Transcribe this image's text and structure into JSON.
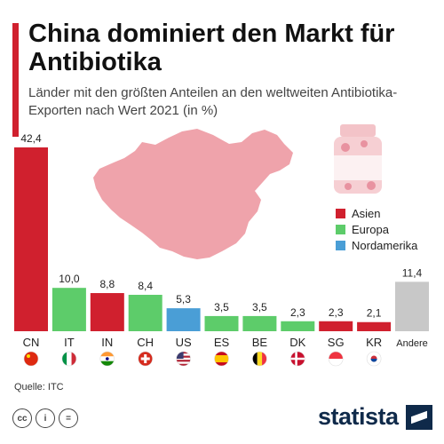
{
  "header": {
    "title": "China dominiert den Markt für Antibiotika",
    "subtitle": "Länder mit den größten Anteilen an den weltweiten Antibiotika-Exporten nach Wert 2021 (in %)"
  },
  "colors": {
    "accent": "#d0202e",
    "asien": "#d0202e",
    "europa": "#5dcc6a",
    "nordamerika": "#4a9ed6",
    "andere": "#c8c8c8",
    "map": "#efa3ab"
  },
  "chart_data": {
    "type": "bar",
    "title": "China dominiert den Markt für Antibiotika",
    "subtitle": "Länder mit den größten Anteilen an den weltweiten Antibiotika-Exporten nach Wert 2021 (in %)",
    "categories": [
      "CN",
      "IT",
      "IN",
      "CH",
      "US",
      "ES",
      "BE",
      "DK",
      "SG",
      "KR",
      "Andere"
    ],
    "values": [
      42.4,
      10.0,
      8.8,
      8.4,
      5.3,
      3.5,
      3.5,
      2.3,
      2.3,
      2.1,
      11.4
    ],
    "value_labels": [
      "42,4",
      "10,0",
      "8,8",
      "8,4",
      "5,3",
      "3,5",
      "3,5",
      "2,3",
      "2,3",
      "2,1",
      "11,4"
    ],
    "regions": [
      "Asien",
      "Europa",
      "Asien",
      "Europa",
      "Nordamerika",
      "Europa",
      "Europa",
      "Europa",
      "Asien",
      "Asien",
      "Andere"
    ],
    "flag_icons": [
      "flag-cn-icon",
      "flag-it-icon",
      "flag-in-icon",
      "flag-ch-icon",
      "flag-us-icon",
      "flag-es-icon",
      "flag-be-icon",
      "flag-dk-icon",
      "flag-sg-icon",
      "flag-kr-icon",
      null
    ],
    "legend": [
      {
        "label": "Asien",
        "color": "#d0202e"
      },
      {
        "label": "Europa",
        "color": "#5dcc6a"
      },
      {
        "label": "Nordamerika",
        "color": "#4a9ed6"
      }
    ],
    "legend_position": "right",
    "grid": false,
    "ylim": [
      0,
      42.4
    ]
  },
  "footer": {
    "source": "Quelle: ITC",
    "brand": "statista"
  }
}
